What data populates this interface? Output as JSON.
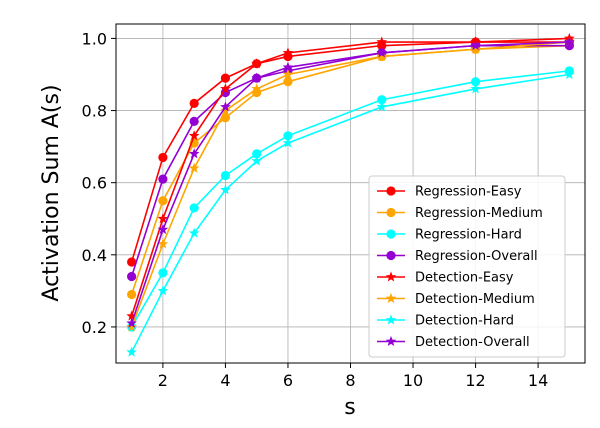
{
  "chart_data": {
    "type": "line",
    "title": "",
    "xlabel": "s",
    "ylabel": "Activation Sum A(s)",
    "xlim": [
      0.5,
      15.5
    ],
    "ylim": [
      0.1,
      1.04
    ],
    "x_ticks": [
      2,
      4,
      6,
      8,
      10,
      12,
      14
    ],
    "y_ticks": [
      0.2,
      0.4,
      0.6,
      0.8,
      1.0
    ],
    "y_tick_labels": [
      "0.2",
      "0.4",
      "0.6",
      "0.8",
      "1.0"
    ],
    "grid": true,
    "legend_position": "lower-right",
    "x": [
      1,
      2,
      3,
      4,
      5,
      6,
      9,
      12,
      15
    ],
    "series": [
      {
        "name": "Regression-Easy",
        "color": "#ff0000",
        "marker": "circle",
        "values": [
          0.38,
          0.67,
          0.82,
          0.89,
          0.93,
          0.95,
          0.98,
          0.99,
          0.99
        ]
      },
      {
        "name": "Regression-Medium",
        "color": "#ffa500",
        "marker": "circle",
        "values": [
          0.29,
          0.55,
          0.71,
          0.78,
          0.85,
          0.88,
          0.95,
          0.97,
          0.98
        ]
      },
      {
        "name": "Regression-Hard",
        "color": "#00ffff",
        "marker": "circle",
        "values": [
          0.2,
          0.35,
          0.53,
          0.62,
          0.68,
          0.73,
          0.83,
          0.88,
          0.91
        ]
      },
      {
        "name": "Regression-Overall",
        "color": "#9400d3",
        "marker": "circle",
        "values": [
          0.34,
          0.61,
          0.77,
          0.85,
          0.89,
          0.91,
          0.96,
          0.98,
          0.98
        ]
      },
      {
        "name": "Detection-Easy",
        "color": "#ff0000",
        "marker": "star",
        "values": [
          0.23,
          0.5,
          0.73,
          0.86,
          0.93,
          0.96,
          0.99,
          0.99,
          1.0
        ]
      },
      {
        "name": "Detection-Medium",
        "color": "#ffa500",
        "marker": "star",
        "values": [
          0.2,
          0.43,
          0.64,
          0.8,
          0.86,
          0.9,
          0.95,
          0.97,
          0.99
        ]
      },
      {
        "name": "Detection-Hard",
        "color": "#00ffff",
        "marker": "star",
        "values": [
          0.13,
          0.3,
          0.46,
          0.58,
          0.66,
          0.71,
          0.81,
          0.86,
          0.9
        ]
      },
      {
        "name": "Detection-Overall",
        "color": "#9400d3",
        "marker": "star",
        "values": [
          0.21,
          0.47,
          0.68,
          0.81,
          0.89,
          0.92,
          0.96,
          0.98,
          0.99
        ]
      }
    ]
  }
}
